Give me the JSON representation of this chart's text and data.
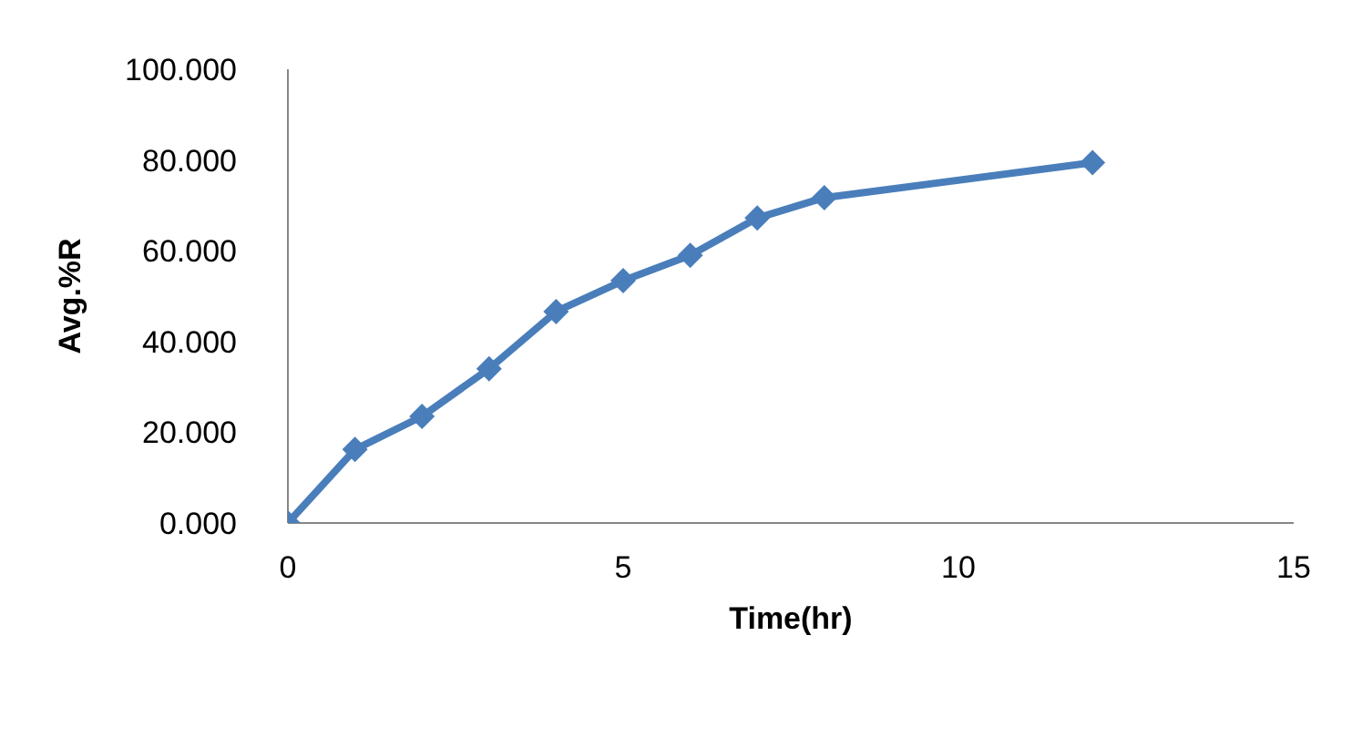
{
  "chart_data": {
    "type": "line",
    "xlabel": "Time(hr)",
    "ylabel": "Avg.%R",
    "x": [
      0,
      1,
      2,
      3,
      4,
      5,
      6,
      7,
      8,
      12
    ],
    "series": [
      {
        "color": "#4a7ebb",
        "values": [
          0,
          16.2,
          23.5,
          34,
          46.6,
          53.4,
          59,
          67.2,
          71.7,
          79.4
        ]
      }
    ],
    "xlim": [
      0,
      15
    ],
    "xticks": [
      0,
      5,
      10,
      15
    ],
    "ylim": [
      0,
      100
    ],
    "yticks": [
      {
        "value": 0,
        "label": "0.000"
      },
      {
        "value": 20,
        "label": "20.000"
      },
      {
        "value": 40,
        "label": "40.000"
      },
      {
        "value": 60,
        "label": "60.000"
      },
      {
        "value": 80,
        "label": "80.000"
      },
      {
        "value": 100,
        "label": "100.000"
      }
    ],
    "grid": false,
    "legend": false,
    "marker": "diamond",
    "line_style": "solid"
  }
}
